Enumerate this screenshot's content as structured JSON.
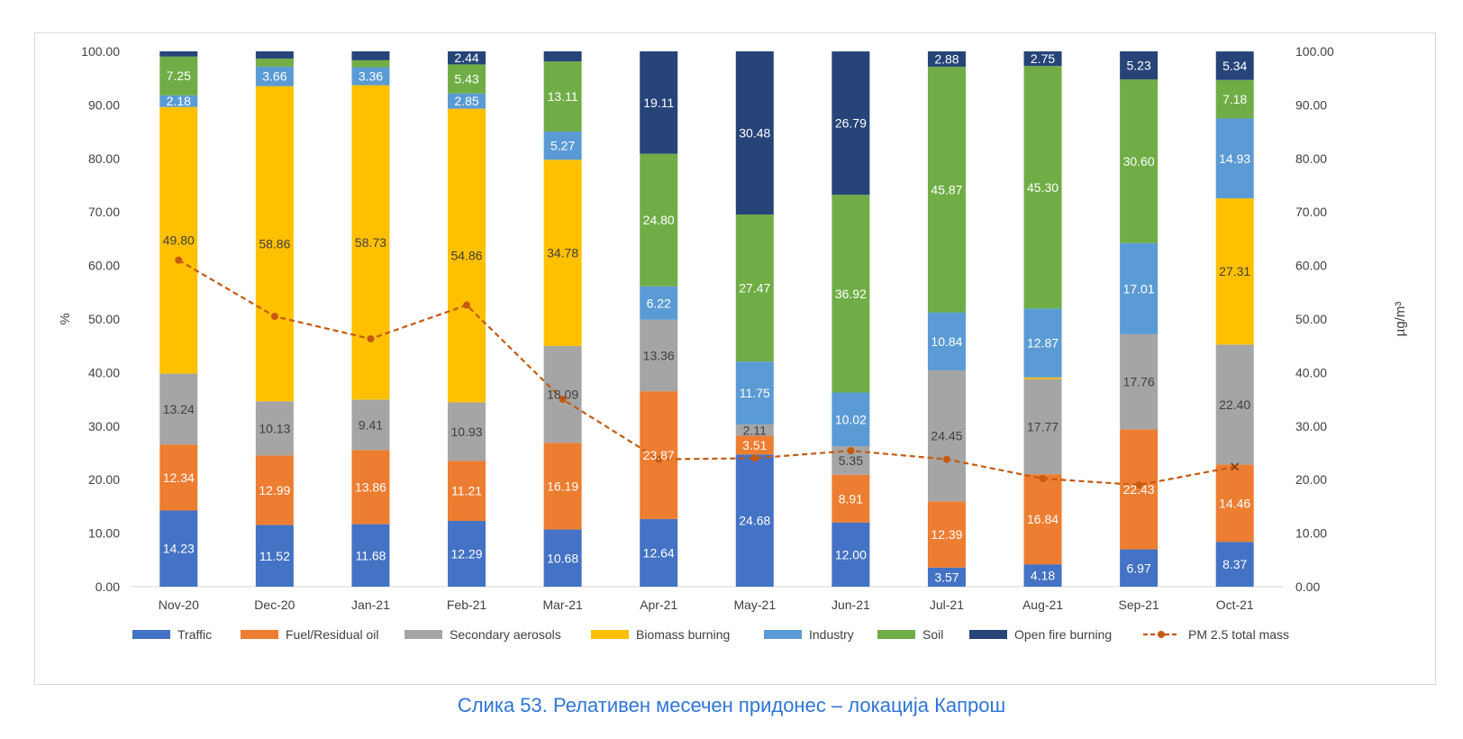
{
  "caption": "Слика 53. Релативен месечен придонес – локација Капрош",
  "colors": {
    "Traffic": "#4472c4",
    "Fuel/Residual oil": "#ed7d31",
    "Secondary aerosols": "#a5a5a5",
    "Biomass burning": "#ffc000",
    "Industry": "#5b9bd5",
    "Soil": "#70ad47",
    "Open fire burning": "#264478",
    "PM 2.5 total mass": "#c55a11"
  },
  "chart_data": {
    "type": "bar",
    "stacked": true,
    "categories": [
      "Nov-20",
      "Dec-20",
      "Jan-21",
      "Feb-21",
      "Mar-21",
      "Apr-21",
      "May-21",
      "Jun-21",
      "Jul-21",
      "Aug-21",
      "Sep-21",
      "Oct-21"
    ],
    "ylabel": "%",
    "y2label": "µg/m³",
    "ylim": [
      0,
      100
    ],
    "y2lim": [
      0,
      100
    ],
    "yticks": [
      "0.00",
      "10.00",
      "20.00",
      "30.00",
      "40.00",
      "50.00",
      "60.00",
      "70.00",
      "80.00",
      "90.00",
      "100.00"
    ],
    "grid": false,
    "legend_position": "bottom",
    "series": [
      {
        "name": "Traffic",
        "values": [
          14.23,
          11.52,
          11.68,
          12.29,
          10.68,
          12.64,
          24.68,
          12.0,
          3.57,
          4.18,
          6.97,
          8.37
        ],
        "labels": [
          "14.23",
          "11.52",
          "11.68",
          "12.29",
          "10.68",
          "12.64",
          "24.68",
          "12.00",
          "3.57",
          "4.18",
          "6.97",
          "8.37"
        ]
      },
      {
        "name": "Fuel/Residual oil",
        "values": [
          12.34,
          12.99,
          13.86,
          11.21,
          16.19,
          23.87,
          3.51,
          8.91,
          12.39,
          16.84,
          22.43,
          14.46
        ],
        "labels": [
          "12.34",
          "12.99",
          "13.86",
          "11.21",
          "16.19",
          "23.87",
          "3.51",
          "8.91",
          "12.39",
          "16.84",
          "22.43",
          "14.46"
        ]
      },
      {
        "name": "Secondary aerosols",
        "values": [
          13.24,
          10.13,
          9.41,
          10.93,
          18.09,
          13.36,
          2.11,
          5.35,
          24.45,
          17.77,
          17.76,
          22.4
        ],
        "labels": [
          "13.24",
          "10.13",
          "9.41",
          "10.93",
          "18.09",
          "13.36",
          "2.11",
          "5.35",
          "24.45",
          "17.77",
          "17.76",
          "22.40"
        ]
      },
      {
        "name": "Biomass burning",
        "values": [
          49.8,
          58.86,
          58.73,
          54.86,
          34.78,
          0,
          0,
          0,
          0,
          0.3,
          0,
          27.31
        ],
        "labels": [
          "49.80",
          "58.86",
          "58.73",
          "54.86",
          "34.78",
          "",
          "",
          "",
          "",
          "",
          "",
          "27.31"
        ]
      },
      {
        "name": "Industry",
        "values": [
          2.18,
          3.66,
          3.36,
          2.85,
          5.27,
          6.22,
          11.75,
          10.02,
          10.84,
          12.87,
          17.01,
          14.93
        ],
        "labels": [
          "2.18",
          "3.66",
          "3.36",
          "2.85",
          "5.27",
          "6.22",
          "11.75",
          "10.02",
          "10.84",
          "12.87",
          "17.01",
          "14.93"
        ]
      },
      {
        "name": "Soil",
        "values": [
          7.25,
          1.5,
          1.3,
          5.43,
          13.11,
          24.8,
          27.47,
          36.92,
          45.87,
          45.3,
          30.6,
          7.18
        ],
        "labels": [
          "7.25",
          "",
          "",
          "5.43",
          "13.11",
          "24.80",
          "27.47",
          "36.92",
          "45.87",
          "45.30",
          "30.60",
          "7.18"
        ]
      },
      {
        "name": "Open fire burning",
        "values": [
          0.96,
          1.34,
          1.66,
          2.44,
          1.88,
          19.11,
          30.48,
          26.79,
          2.88,
          2.75,
          5.23,
          5.34
        ],
        "labels": [
          "",
          "",
          "",
          "2.44",
          "",
          "19.11",
          "30.48",
          "26.79",
          "2.88",
          "2.75",
          "5.23",
          "5.34"
        ]
      },
      {
        "name": "PM 2.5 total mass",
        "type": "line",
        "axis": "right",
        "values": [
          61.0,
          50.5,
          46.3,
          52.6,
          35.0,
          23.8,
          24.0,
          25.4,
          23.8,
          20.2,
          19.0,
          22.4
        ]
      }
    ]
  }
}
